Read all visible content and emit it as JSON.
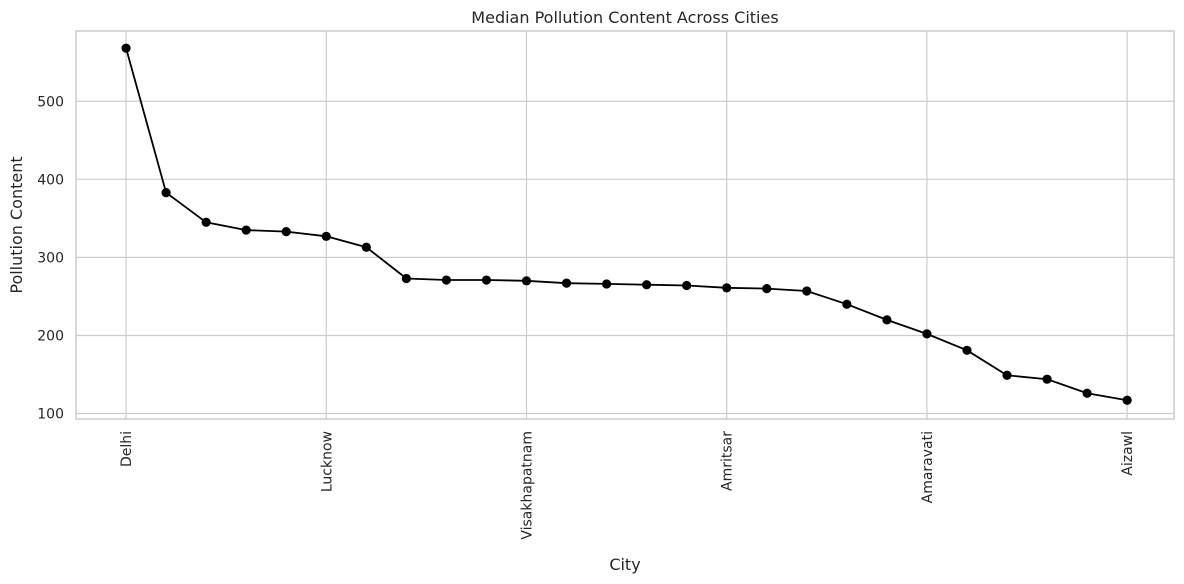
{
  "chart_data": {
    "type": "line",
    "title": "Median Pollution Content Across Cities",
    "xlabel": "City",
    "ylabel": "Pollution Content",
    "ylim": [
      93,
      590
    ],
    "yticks": [
      100,
      200,
      300,
      400,
      500
    ],
    "grid": true,
    "x_tick_labels": [
      "Delhi",
      "Lucknow",
      "Visakhapatnam",
      "Amritsar",
      "Amaravati",
      "Aizawl"
    ],
    "x_tick_positions": [
      0,
      5,
      10,
      15,
      20,
      25
    ],
    "values": [
      568,
      383,
      345,
      335,
      333,
      327,
      313,
      273,
      271,
      271,
      270,
      267,
      266,
      265,
      264,
      261,
      260,
      257,
      240,
      220,
      202,
      181,
      149,
      144,
      126,
      117
    ],
    "line_color": "#000000",
    "marker_color": "#000000",
    "grid_color": "#cccccc"
  }
}
